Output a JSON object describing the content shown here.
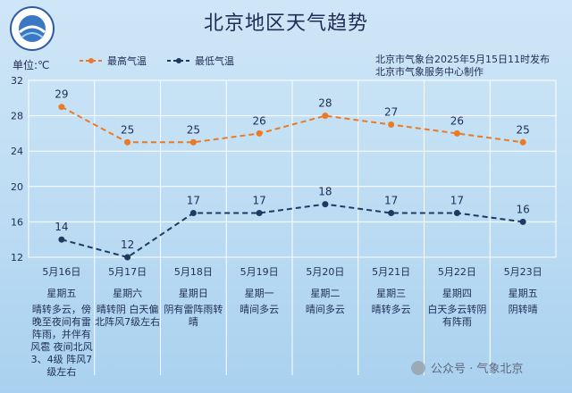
{
  "title": "北京地区天气趋势",
  "unit_label": "单位:℃",
  "issuer_line1": "北京市气象台2025年5月15日11时发布",
  "issuer_line2": "北京市气象服务中心制作",
  "watermark": "公众号 · 气象北京",
  "colors": {
    "high": "#ea7a25",
    "low": "#1f3a60",
    "text": "#1f2c55"
  },
  "chart_data": {
    "type": "line",
    "title": "北京地区天气趋势",
    "ylabel": "单位:℃",
    "ylim": [
      12,
      32
    ],
    "yticks": [
      12,
      16,
      20,
      24,
      28,
      32
    ],
    "grid": true,
    "legend_position": "top-left",
    "categories": [
      "5月16日",
      "5月17日",
      "5月18日",
      "5月19日",
      "5月20日",
      "5月21日",
      "5月22日",
      "5月23日"
    ],
    "weekdays": [
      "星期五",
      "星期六",
      "星期日",
      "星期一",
      "星期二",
      "星期三",
      "星期四",
      "星期五"
    ],
    "descriptions": [
      "晴转多云，傍晚至夜间有雷阵雨，并伴有风雹 夜间北风3、4级 阵风7级左右",
      "晴转阴 白天偏北阵风7级左右",
      "阴有雷阵雨转晴",
      "晴间多云",
      "晴间多云",
      "晴转多云",
      "白天多云转阴有阵雨",
      "阴转晴"
    ],
    "series": [
      {
        "name": "最高气温",
        "values": [
          29,
          25,
          25,
          26,
          28,
          27,
          26,
          25
        ]
      },
      {
        "name": "最低气温",
        "values": [
          14,
          12,
          17,
          17,
          18,
          17,
          17,
          16
        ]
      }
    ]
  }
}
